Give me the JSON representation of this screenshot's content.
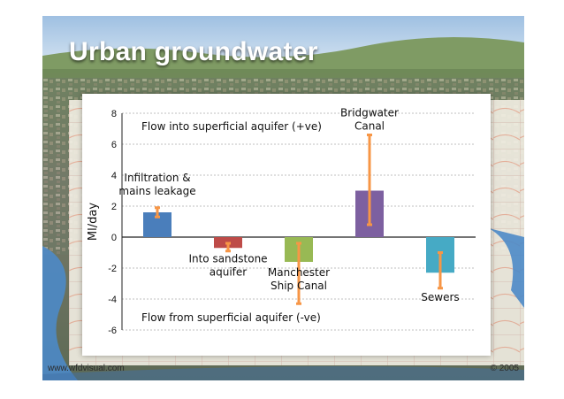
{
  "slide": {
    "title": "Urban groundwater",
    "footer_left": "www.wfdvisual.com",
    "footer_right": "© 2005",
    "colors": {
      "accent": "#2b5da8",
      "sky": "#c9dcef"
    }
  },
  "chart_data": {
    "type": "bar",
    "title": "",
    "xlabel": "",
    "ylabel": "Ml/day",
    "ylim": [
      -6,
      8
    ],
    "yticks": [
      -6,
      -4,
      -2,
      0,
      2,
      4,
      6,
      8
    ],
    "grid": true,
    "annotations": {
      "top": "Flow into superficial aquifer (+ve)",
      "bottom": "Flow from superficial aquifer (-ve)"
    },
    "bars": [
      {
        "label_lines": [
          "Infiltration &",
          "mains leakage"
        ],
        "value": 1.6,
        "err_low": 1.3,
        "err_high": 1.9,
        "color": "#4a7ebb"
      },
      {
        "label_lines": [
          "Into sandstone",
          "aquifer"
        ],
        "value": -0.7,
        "err_low": -0.9,
        "err_high": -0.4,
        "color": "#be4b48"
      },
      {
        "label_lines": [
          "Manchester",
          "Ship Canal"
        ],
        "value": -1.6,
        "err_low": -4.3,
        "err_high": -0.4,
        "color": "#98b954"
      },
      {
        "label_lines": [
          "Bridgwater",
          "Canal"
        ],
        "value": 3.0,
        "err_low": 0.8,
        "err_high": 6.6,
        "color": "#7d60a0"
      },
      {
        "label_lines": [
          "Sewers"
        ],
        "value": -2.3,
        "err_low": -3.3,
        "err_high": -1.0,
        "color": "#46aac5"
      }
    ],
    "errorbar_color": "#f79646"
  }
}
